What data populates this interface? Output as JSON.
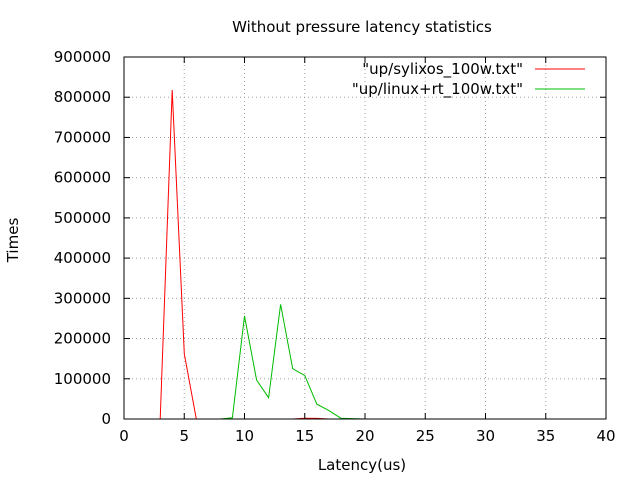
{
  "chart_data": {
    "type": "line",
    "title": "Without pressure latency statistics",
    "xlabel": "Latency(us)",
    "ylabel": "Times",
    "xlim": [
      0,
      40
    ],
    "ylim": [
      0,
      900000
    ],
    "xticks": [
      0,
      5,
      10,
      15,
      20,
      25,
      30,
      35,
      40
    ],
    "yticks": [
      0,
      100000,
      200000,
      300000,
      400000,
      500000,
      600000,
      700000,
      800000,
      900000
    ],
    "grid": true,
    "legend_position": "top-right",
    "series": [
      {
        "name": "\"up/sylixos_100w.txt\"",
        "color": "#ff0000",
        "x": [
          0,
          1,
          2,
          3,
          4,
          5,
          6,
          7,
          8,
          9,
          10,
          11,
          12,
          13,
          14,
          15,
          16,
          17,
          18,
          19,
          20,
          21,
          22,
          23,
          24,
          25,
          26,
          27,
          28,
          29,
          30,
          31,
          32,
          33,
          34,
          35,
          36,
          37,
          38
        ],
        "y": [
          0,
          0,
          0,
          0,
          818000,
          162000,
          0,
          0,
          0,
          0,
          0,
          0,
          0,
          0,
          0,
          2000,
          1500,
          0,
          0,
          0,
          0,
          0,
          0,
          0,
          0,
          0,
          0,
          0,
          0,
          0,
          0,
          0,
          0,
          0,
          0,
          0,
          0,
          0,
          0
        ]
      },
      {
        "name": "\"up/linux+rt_100w.txt\"",
        "color": "#00bb00",
        "x": [
          8,
          9,
          10,
          11,
          12,
          13,
          14,
          15,
          16,
          17,
          18,
          19,
          20,
          21,
          22,
          23,
          24,
          25,
          26,
          27,
          28,
          29,
          30,
          31,
          32,
          33,
          34,
          35,
          36,
          37,
          38
        ],
        "y": [
          0,
          3000,
          256000,
          97000,
          53000,
          285000,
          125000,
          108000,
          37000,
          21000,
          2000,
          1000,
          0,
          0,
          0,
          0,
          0,
          0,
          0,
          0,
          0,
          0,
          0,
          0,
          0,
          0,
          0,
          0,
          0,
          0,
          0
        ]
      }
    ]
  }
}
